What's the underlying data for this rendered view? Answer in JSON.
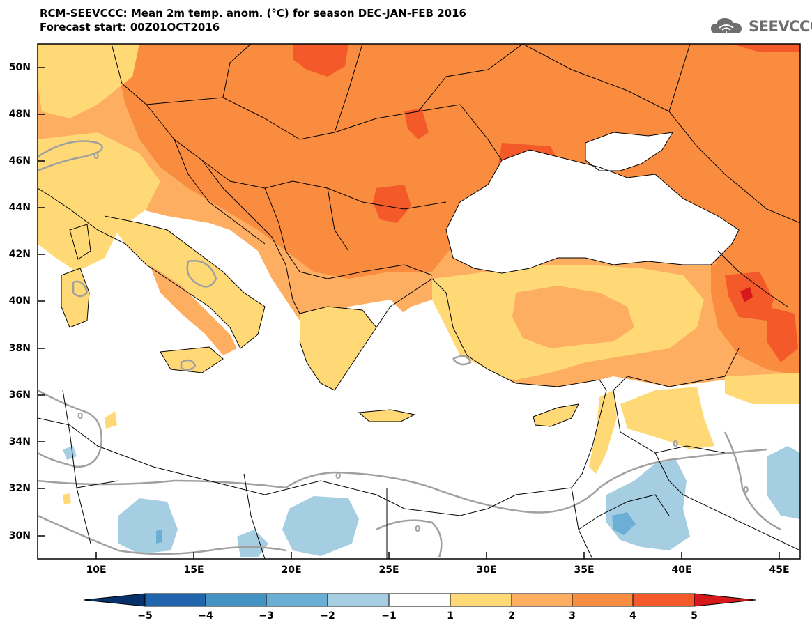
{
  "header": {
    "title_line1": "RCM-SEEVCCC: Mean 2m temp. anom. (°C) for season DEC-JAN-FEB 2016",
    "title_line2": "Forecast start: 00Z01OCT2016",
    "logo_text": "SEEVCCC"
  },
  "axes": {
    "lat_labels": [
      "50N",
      "48N",
      "46N",
      "44N",
      "42N",
      "40N",
      "38N",
      "36N",
      "34N",
      "32N",
      "30N"
    ],
    "lon_labels": [
      "10E",
      "15E",
      "20E",
      "25E",
      "30E",
      "35E",
      "40E",
      "45E"
    ]
  },
  "contour_labels": [
    "0",
    "0",
    "0",
    "0",
    "0",
    "0"
  ],
  "colorbar": {
    "labels": [
      "−5",
      "−4",
      "−3",
      "−2",
      "−1",
      "1",
      "2",
      "3",
      "4",
      "5"
    ],
    "colors": [
      "#08306b",
      "#2166ac",
      "#4393c3",
      "#6baed6",
      "#a6cee3",
      "#ffffff",
      "#fed976",
      "#fdae61",
      "#f98c3e",
      "#f4592a",
      "#d7191c"
    ],
    "under_color": "#08306b",
    "over_color": "#d7191c"
  },
  "legend_colors": {
    "land_anomaly_1_2": "#fed976",
    "land_anomaly_2_3": "#fdae61",
    "land_anomaly_3_4": "#f98c3e",
    "land_anomaly_4_5": "#f4592a",
    "land_anomaly_gt5": "#d7191c",
    "cold_anomaly": "#a6cee3",
    "cold_anomaly_strong": "#6baed6",
    "water": "#ffffff",
    "zero_contour": "#a0a0a0"
  }
}
